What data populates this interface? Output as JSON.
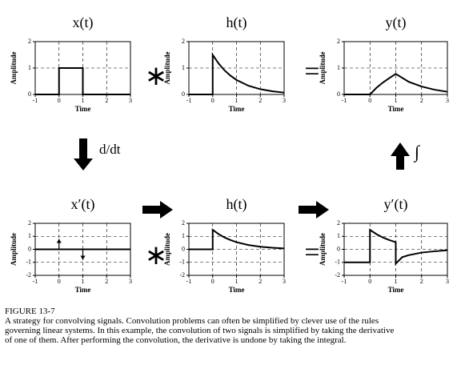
{
  "chart_data": [
    {
      "type": "line",
      "title": "x(t)",
      "xlabel": "Time",
      "ylabel": "Amplitude",
      "xlim": [
        -1,
        3
      ],
      "ylim": [
        0,
        2
      ],
      "xticks": [
        -1,
        0,
        1,
        2,
        3
      ],
      "yticks": [
        0,
        1,
        2
      ],
      "grid": true,
      "series": [
        {
          "color": "#000000",
          "x": [
            -1,
            0,
            0,
            1,
            1,
            3
          ],
          "values": [
            0,
            0,
            1,
            1,
            0,
            0
          ]
        }
      ]
    },
    {
      "type": "line",
      "title": "h(t)",
      "xlabel": "Time",
      "ylabel": "Amplitude",
      "xlim": [
        -1,
        3
      ],
      "ylim": [
        0,
        2
      ],
      "xticks": [
        -1,
        0,
        1,
        2,
        3
      ],
      "yticks": [
        0,
        1,
        2
      ],
      "grid": true,
      "series": [
        {
          "color": "#000000",
          "x": [
            -1,
            0,
            0,
            0.25,
            0.5,
            0.75,
            1,
            1.5,
            2,
            2.5,
            3
          ],
          "values": [
            0,
            0,
            1.5,
            1.17,
            0.91,
            0.71,
            0.55,
            0.33,
            0.2,
            0.12,
            0.07
          ]
        }
      ]
    },
    {
      "type": "line",
      "title": "y(t)",
      "xlabel": "Time",
      "ylabel": "Amplitude",
      "xlim": [
        -1,
        3
      ],
      "ylim": [
        0,
        2
      ],
      "xticks": [
        -1,
        0,
        1,
        2,
        3
      ],
      "yticks": [
        0,
        1,
        2
      ],
      "grid": true,
      "series": [
        {
          "color": "#000000",
          "x": [
            -1,
            0,
            0.25,
            0.5,
            0.75,
            1,
            1.5,
            2,
            2.5,
            3
          ],
          "values": [
            0,
            0,
            0.25,
            0.45,
            0.62,
            0.78,
            0.48,
            0.3,
            0.18,
            0.1
          ]
        }
      ]
    },
    {
      "type": "line",
      "title": "x′(t)",
      "xlabel": "Time",
      "ylabel": "Amplitude",
      "xlim": [
        -1,
        3
      ],
      "ylim": [
        -2,
        2
      ],
      "xticks": [
        -1,
        0,
        1,
        2,
        3
      ],
      "yticks": [
        -2,
        -1,
        0,
        1,
        2
      ],
      "grid": true,
      "series": [
        {
          "color": "#000000",
          "x": [
            -1,
            3
          ],
          "values": [
            0,
            0
          ]
        }
      ],
      "impulses": {
        "x": [
          0,
          1
        ],
        "values": [
          0.8,
          -0.8
        ]
      }
    },
    {
      "type": "line",
      "title": "h(t)",
      "xlabel": "Time",
      "ylabel": "Amplitude",
      "xlim": [
        -1,
        3
      ],
      "ylim": [
        -2,
        2
      ],
      "xticks": [
        -1,
        0,
        1,
        2,
        3
      ],
      "yticks": [
        -2,
        -1,
        0,
        1,
        2
      ],
      "grid": true,
      "series": [
        {
          "color": "#000000",
          "x": [
            -1,
            0,
            0,
            0.25,
            0.5,
            0.75,
            1,
            1.5,
            2,
            2.5,
            3
          ],
          "values": [
            0,
            0,
            1.5,
            1.17,
            0.91,
            0.71,
            0.55,
            0.33,
            0.2,
            0.12,
            0.07
          ]
        }
      ]
    },
    {
      "type": "line",
      "title": "y′(t)",
      "xlabel": "Time",
      "ylabel": "Amplitude",
      "xlim": [
        -1,
        3
      ],
      "ylim": [
        -2,
        2
      ],
      "xticks": [
        -1,
        0,
        1,
        2,
        3
      ],
      "yticks": [
        -2,
        -1,
        0,
        1,
        2
      ],
      "grid": true,
      "series": [
        {
          "color": "#000000",
          "x": [
            -1,
            0,
            0,
            0.25,
            0.5,
            0.75,
            1,
            1,
            1.25,
            1.5,
            2,
            2.5,
            3
          ],
          "values": [
            -1,
            -1,
            1.5,
            1.17,
            0.91,
            0.71,
            0.55,
            -1.1,
            -0.6,
            -0.45,
            -0.25,
            -0.15,
            -0.07
          ]
        }
      ]
    }
  ],
  "figure": {
    "convolve": "∗",
    "equals": "=",
    "derivative": "d/dt",
    "integral": "∫",
    "caption": {
      "label": "FIGURE 13-7",
      "lines": [
        "A strategy for convolving signals.  Convolution problems can often be simplified by clever use of the rules",
        "governing linear systems.  In this example, the convolution of two signals is simplified by taking the derivative",
        "of one of them.  After performing the convolution, the derivative is undone by taking the integral."
      ]
    }
  }
}
